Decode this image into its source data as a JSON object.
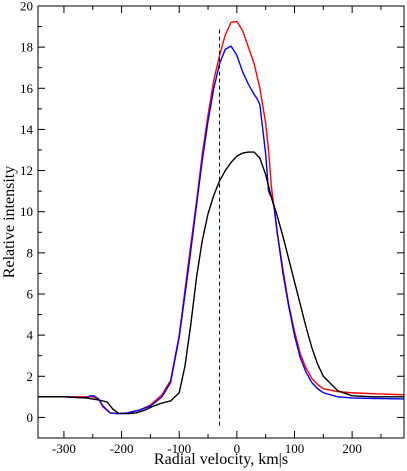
{
  "chart_data": {
    "type": "line",
    "xlabel": "Radial velocity, km|s",
    "ylabel": "Relative intensity",
    "xlim": [
      -345,
      290
    ],
    "ylim": [
      -1,
      20
    ],
    "x_ticks": [
      -300,
      -200,
      -100,
      0,
      100,
      200
    ],
    "y_ticks": [
      0,
      2,
      4,
      6,
      8,
      10,
      12,
      14,
      16,
      18,
      20
    ],
    "grid": false,
    "legend": "none",
    "reference_line": {
      "x": -30,
      "y_range": [
        -0.4,
        18.9
      ],
      "style": "dashed",
      "color": "#000000"
    },
    "series": [
      {
        "color": "#ff0000",
        "x": [
          -345,
          -300,
          -262,
          -250,
          -240,
          -232,
          -220,
          -205,
          -190,
          -170,
          -150,
          -130,
          -115,
          -100,
          -85,
          -70,
          -60,
          -50,
          -40,
          -30,
          -20,
          -10,
          0,
          10,
          20,
          30,
          40,
          50,
          55,
          60,
          70,
          80,
          90,
          100,
          110,
          120,
          130,
          140,
          150,
          175,
          200,
          240,
          290
        ],
        "y": [
          1.0,
          1.0,
          1.0,
          1.0,
          0.9,
          0.5,
          0.22,
          0.18,
          0.22,
          0.35,
          0.6,
          1.1,
          1.8,
          4.0,
          7.3,
          10.5,
          12.8,
          14.7,
          16.4,
          17.6,
          18.6,
          19.2,
          19.25,
          18.8,
          18.0,
          17.2,
          16.0,
          14.3,
          13.0,
          11.2,
          9.0,
          7.2,
          5.5,
          4.2,
          3.1,
          2.4,
          1.9,
          1.6,
          1.4,
          1.25,
          1.2,
          1.15,
          1.1
        ]
      },
      {
        "color": "#0000ff",
        "x": [
          -345,
          -300,
          -262,
          -255,
          -248,
          -240,
          -232,
          -220,
          -205,
          -190,
          -170,
          -150,
          -130,
          -115,
          -100,
          -85,
          -70,
          -60,
          -50,
          -40,
          -30,
          -20,
          -10,
          0,
          10,
          20,
          30,
          35,
          40,
          45,
          50,
          55,
          58,
          60,
          65,
          70,
          80,
          90,
          100,
          110,
          120,
          130,
          140,
          150,
          175,
          200,
          240,
          290
        ],
        "y": [
          1.0,
          1.0,
          0.95,
          1.05,
          1.05,
          0.9,
          0.55,
          0.22,
          0.18,
          0.22,
          0.35,
          0.55,
          1.0,
          1.7,
          3.9,
          7.0,
          10.3,
          12.5,
          14.4,
          16.0,
          17.2,
          17.9,
          18.05,
          17.6,
          16.8,
          16.2,
          15.7,
          15.5,
          15.2,
          14.0,
          12.8,
          11.0,
          10.8,
          10.7,
          10.2,
          9.0,
          7.0,
          5.4,
          4.0,
          2.9,
          2.2,
          1.7,
          1.4,
          1.2,
          1.0,
          0.95,
          0.92,
          0.9
        ]
      },
      {
        "color": "#000000",
        "x": [
          -345,
          -300,
          -262,
          -240,
          -225,
          -215,
          -205,
          -190,
          -175,
          -160,
          -145,
          -130,
          -115,
          -100,
          -90,
          -80,
          -70,
          -60,
          -50,
          -40,
          -30,
          -20,
          -10,
          0,
          10,
          20,
          30,
          40,
          50,
          60,
          70,
          80,
          90,
          100,
          110,
          120,
          130,
          140,
          150,
          175,
          200,
          240,
          290
        ],
        "y": [
          1.0,
          1.0,
          0.95,
          0.85,
          0.75,
          0.4,
          0.2,
          0.18,
          0.22,
          0.35,
          0.55,
          0.7,
          0.8,
          1.2,
          2.5,
          4.5,
          6.8,
          8.6,
          9.9,
          10.8,
          11.5,
          12.0,
          12.4,
          12.7,
          12.85,
          12.9,
          12.9,
          12.6,
          11.8,
          10.7,
          9.8,
          8.8,
          7.7,
          6.6,
          5.5,
          4.4,
          3.4,
          2.6,
          2.0,
          1.3,
          1.05,
          1.0,
          1.0
        ]
      }
    ]
  }
}
